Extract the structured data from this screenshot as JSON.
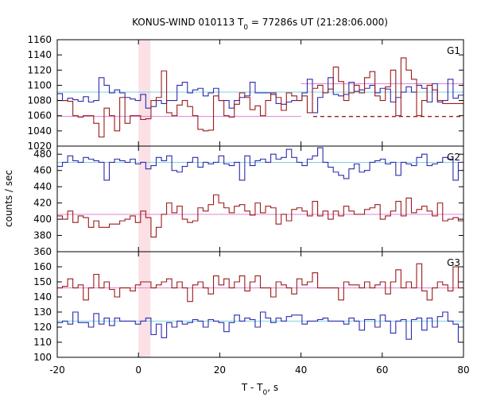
{
  "chart_data": {
    "type": "line",
    "title": "KONUS-WIND 010113 T",
    "title_sub": "0",
    "title_rest": " = 77286s UT (21:28:06.000)",
    "xlabel": "T - T",
    "xlabel_sub": "0",
    "xlabel_rest": ", s",
    "ylabel": "counts / sec",
    "xlim": [
      -20,
      80
    ],
    "x_ticks": [
      "-20",
      "0",
      "20",
      "40",
      "60",
      "80"
    ],
    "highlight_interval": [
      0,
      2.944
    ],
    "colors": {
      "blue": "#2b2bb0",
      "red": "#9b1b1b",
      "cyan_bg": "#7fd0e0",
      "pink_bg": "#e080d8",
      "shade": "#fbe0e6"
    },
    "panels": [
      {
        "name": "G1",
        "ylim": [
          1020,
          1160
        ],
        "y_ticks": [
          "1020",
          "1040",
          "1060",
          "1080",
          "1100",
          "1120",
          "1140",
          "1160"
        ],
        "background_levels": [
          {
            "color": "cyan",
            "segments": [
              [
                -20,
                80,
                1091
              ]
            ]
          },
          {
            "color": "pink",
            "segments": [
              [
                -20,
                40,
                1059
              ],
              [
                40,
                41,
                1102
              ],
              [
                41,
                80,
                1102
              ]
            ]
          },
          {
            "color": "red-dashed",
            "segments": [
              [
                43,
                80,
                1059
              ]
            ]
          }
        ],
        "series": [
          {
            "color": "blue",
            "values": [
              1089,
              1080,
              1083,
              1081,
              1079,
              1085,
              1078,
              1080,
              1110,
              1100,
              1090,
              1094,
              1090,
              1084,
              1082,
              1080,
              1088,
              1070,
              1072,
              1080,
              1076,
              1080,
              1080,
              1100,
              1104,
              1090,
              1094,
              1096,
              1086,
              1090,
              1096,
              1080,
              1080,
              1070,
              1080,
              1084,
              1086,
              1104,
              1090,
              1090,
              1090,
              1088,
              1076,
              1075,
              1078,
              1080,
              1080,
              1090,
              1108,
              1064,
              1084,
              1090,
              1110,
              1088,
              1086,
              1088,
              1104,
              1092,
              1094,
              1096,
              1100,
              1090,
              1096,
              1095,
              1078,
              1084,
              1091,
              1098,
              1091,
              1100,
              1096,
              1078,
              1102,
              1078,
              1080,
              1108,
              1083,
              1087
            ]
          },
          {
            "color": "red",
            "values": [
              1080,
              1080,
              1079,
              1060,
              1058,
              1060,
              1060,
              1050,
              1032,
              1070,
              1060,
              1040,
              1084,
              1050,
              1060,
              1060,
              1055,
              1056,
              1080,
              1084,
              1119,
              1064,
              1060,
              1074,
              1080,
              1072,
              1060,
              1042,
              1040,
              1041,
              1086,
              1080,
              1060,
              1058,
              1075,
              1090,
              1084,
              1068,
              1073,
              1060,
              1080,
              1090,
              1084,
              1067,
              1090,
              1086,
              1080,
              1086,
              1064,
              1096,
              1100,
              1090,
              1095,
              1124,
              1105,
              1080,
              1090,
              1100,
              1090,
              1110,
              1118,
              1086,
              1080,
              1098,
              1120,
              1060,
              1136,
              1120,
              1108,
              1060,
              1080,
              1100,
              1094,
              1080,
              1076,
              1076,
              1076,
              1076
            ]
          }
        ]
      },
      {
        "name": "G2",
        "ylim": [
          360,
          490
        ],
        "y_ticks": [
          "360",
          "380",
          "400",
          "420",
          "440",
          "460",
          "480"
        ],
        "background_levels": [
          {
            "color": "cyan",
            "segments": [
              [
                -20,
                80,
                470
              ]
            ]
          },
          {
            "color": "pink",
            "segments": [
              [
                -20,
                80,
                406
              ]
            ]
          }
        ],
        "series": [
          {
            "color": "blue",
            "values": [
              465,
              470,
              478,
              472,
              470,
              476,
              474,
              472,
              470,
              448,
              470,
              474,
              472,
              470,
              474,
              468,
              470,
              462,
              466,
              476,
              472,
              478,
              460,
              458,
              465,
              470,
              476,
              464,
              470,
              468,
              470,
              478,
              468,
              466,
              470,
              448,
              478,
              466,
              472,
              474,
              470,
              480,
              474,
              476,
              486,
              476,
              470,
              466,
              474,
              478,
              488,
              470,
              464,
              458,
              454,
              450,
              462,
              468,
              458,
              460,
              470,
              472,
              474,
              468,
              470,
              454,
              470,
              468,
              466,
              476,
              480,
              466,
              468,
              470,
              476,
              474,
              448,
              470
            ]
          },
          {
            "color": "red",
            "values": [
              404,
              400,
              410,
              396,
              404,
              402,
              390,
              398,
              390,
              390,
              394,
              394,
              398,
              400,
              404,
              396,
              410,
              402,
              378,
              390,
              406,
              420,
              408,
              416,
              400,
              396,
              398,
              414,
              410,
              418,
              430,
              420,
              414,
              408,
              416,
              418,
              410,
              405,
              420,
              408,
              416,
              414,
              394,
              406,
              398,
              412,
              414,
              410,
              404,
              422,
              404,
              410,
              400,
              410,
              404,
              416,
              410,
              406,
              406,
              412,
              414,
              418,
              400,
              404,
              410,
              422,
              404,
              426,
              408,
              412,
              416,
              410,
              404,
              420,
              398,
              400,
              402,
              398
            ]
          }
        ]
      },
      {
        "name": "G3",
        "ylim": [
          100,
          170
        ],
        "y_ticks": [
          "100",
          "110",
          "120",
          "130",
          "140",
          "150",
          "160"
        ],
        "background_levels": [
          {
            "color": "cyan",
            "segments": [
              [
                -20,
                80,
                124
              ]
            ]
          },
          {
            "color": "pink",
            "segments": [
              [
                -20,
                80,
                146
              ]
            ]
          }
        ],
        "series": [
          {
            "color": "blue",
            "values": [
              123,
              124,
              122,
              130,
              123,
              123,
              120,
              129,
              122,
              126,
              121,
              126,
              124,
              124,
              124,
              122,
              124,
              126,
              115,
              122,
              113,
              123,
              120,
              124,
              122,
              123,
              125,
              124,
              120,
              125,
              124,
              123,
              117,
              123,
              128,
              124,
              126,
              125,
              120,
              130,
              126,
              123,
              126,
              124,
              127,
              128,
              128,
              122,
              124,
              124,
              125,
              126,
              124,
              124,
              124,
              122,
              126,
              124,
              118,
              125,
              125,
              120,
              128,
              124,
              116,
              124,
              125,
              112,
              125,
              126,
              118,
              126,
              120,
              127,
              130,
              124,
              122,
              110
            ]
          },
          {
            "color": "red",
            "values": [
              146,
              147,
              152,
              146,
              148,
              138,
              146,
              155,
              146,
              150,
              145,
              140,
              146,
              146,
              144,
              148,
              150,
              150,
              146,
              148,
              150,
              152,
              146,
              150,
              146,
              137,
              148,
              150,
              146,
              142,
              154,
              148,
              152,
              146,
              150,
              154,
              144,
              150,
              154,
              146,
              146,
              140,
              150,
              148,
              146,
              142,
              152,
              148,
              150,
              156,
              146,
              146,
              146,
              146,
              138,
              150,
              148,
              148,
              146,
              150,
              146,
              148,
              150,
              142,
              150,
              158,
              146,
              150,
              146,
              162,
              144,
              138,
              146,
              150,
              148,
              144,
              160,
              146
            ]
          }
        ]
      }
    ]
  }
}
